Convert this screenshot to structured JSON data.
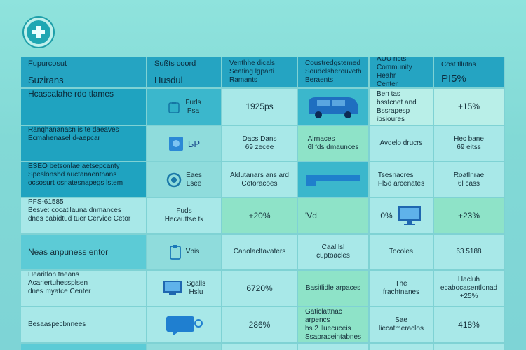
{
  "logo": {
    "icon": "medical-cross-icon",
    "color": "#1fa7b3"
  },
  "header": {
    "col1": {
      "line1": "Fupurcosut",
      "line2": "Suzirans"
    },
    "col2": {
      "line1": "Sußts coord",
      "line2": "Husdul"
    },
    "col3": {
      "line1": "Venthhe dicals",
      "line2": "Seating lgparti",
      "line3": "Ramants"
    },
    "col4": {
      "line1": "Coustredgstemed",
      "line2": "Soudelsherouveth",
      "line3": "Beraents"
    },
    "col5": {
      "line1": "AUU ncts",
      "line2": "Community Heahr",
      "line3": "Center"
    },
    "col6": {
      "line1": "Cost tllutns",
      "line2": "PI5%"
    }
  },
  "rows": [
    {
      "label": [
        "Hcascalahe rdo tlames"
      ],
      "c2": [
        "Fuds",
        "Psa"
      ],
      "c2_icon": "clipboard-icon",
      "c3": [
        "1925ps"
      ],
      "c4_icon": "van-icon",
      "c5": [
        "Ben tas bsstcnet and",
        "Bssrapesp ibsioures"
      ],
      "c6": [
        "+15%"
      ]
    },
    {
      "label": [
        "Ranqhananasn is te daeaves",
        "Ecmahenasel d-aepcar"
      ],
      "c2": [
        "БР"
      ],
      "c2_icon": "square-badge-icon",
      "c3": [
        "Dacs Dans",
        "69 zecee"
      ],
      "c4": [
        "Alrnaces",
        "6l fds dmaunces"
      ],
      "c5": [
        "Avdelo drucrs"
      ],
      "c6": [
        "Hec bane",
        "69 eitss"
      ]
    },
    {
      "label": [
        "ESEO betsonlae aetsepcanty",
        "Speslonsbd auctanaentnans",
        "ocsosurt osnatesnapegs lstem"
      ],
      "c2": [
        "Eaes",
        "Lsee"
      ],
      "c2_icon": "circle-c-icon",
      "c3": [
        "Aldutanars ans ard",
        "Cotoracoes"
      ],
      "c4_icon": "bar-icon",
      "c5": [
        "Tsesnacres",
        "Fl5d arcenates"
      ],
      "c6": [
        "Roatlnrae",
        "6l cass"
      ]
    },
    {
      "label": [
        "PFS-61585",
        "Besve: cocatilauna dnmances",
        "dnes cabidtud tuer Cervice Cetor"
      ],
      "c2": [
        "Fuds",
        "Hecauttse tk"
      ],
      "c3": [
        "+20%"
      ],
      "c4": [
        "'Vd"
      ],
      "c5": [
        "0%"
      ],
      "c5_icon": "monitor-icon",
      "c6": [
        "+23%"
      ]
    },
    {
      "label": [
        "Neas anpuness entor"
      ],
      "c2": [
        "Vbis"
      ],
      "c2_icon": "clipboard-icon",
      "c3": [
        "Canolacltavaters"
      ],
      "c4": [
        "Caal lsl cuptoacles"
      ],
      "c5": [
        "Tocoles"
      ],
      "c6": [
        "63 5188"
      ]
    },
    {
      "label": [
        "Hearitlon tneans",
        "Acarlertuhessplsen",
        "dnes myatce Center"
      ],
      "c2": [
        "Sgalls",
        "Hslu"
      ],
      "c2_icon": "monitor-icon",
      "c3": [
        "6720%"
      ],
      "c4": [
        "Basitlidle arpaces"
      ],
      "c5": [
        "The frachtnanes"
      ],
      "c6": [
        "Hacluh",
        "ecabocasentlonad",
        "+25%"
      ]
    },
    {
      "label": [
        "Besaaspecbnnees"
      ],
      "c2": [
        ""
      ],
      "c2_icon": "chat-icon",
      "c3": [
        "286%"
      ],
      "c4": [
        "Gaticlattnac arpencs",
        "bs 2 lluecuceis",
        "Ssapraceintabnes"
      ],
      "c5": [
        "Sae liecatmeraclos"
      ],
      "c6": [
        "418%"
      ]
    }
  ]
}
